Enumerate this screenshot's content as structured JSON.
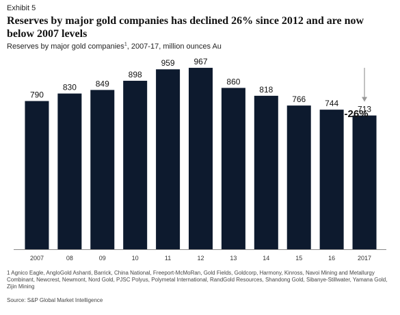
{
  "exhibit": "Exhibit 5",
  "title": "Reserves by major gold companies has declined 26% since 2012 and are now below 2007 levels",
  "subtitle": {
    "text": "Reserves by major gold companies",
    "superscript": "1",
    "rest": ", 2007-17, million ounces Au"
  },
  "chart_data": {
    "type": "bar",
    "categories": [
      "2007",
      "08",
      "09",
      "10",
      "11",
      "12",
      "13",
      "14",
      "15",
      "16",
      "2017"
    ],
    "values": [
      790,
      830,
      849,
      898,
      959,
      967,
      860,
      818,
      766,
      744,
      713
    ],
    "data_labels": [
      "790",
      "830",
      "849",
      "898",
      "959",
      "967",
      "860",
      "818",
      "766",
      "744",
      "713"
    ],
    "ylim": [
      0,
      1000
    ],
    "bar_color": "#0d1a2e",
    "annotation": {
      "text": "-26%",
      "from_category": "12",
      "to_category": "2017",
      "color": "#999999"
    },
    "grid": false
  },
  "footnote": "1 Agnico Eagle, AngloGold Ashanti, Barrick, China National, Freeport-McMoRan, Gold Fields, Goldcorp, Harmony, Kinross, Navoi Mining and Metallurgy Combinant, Newcrest, Newmont, Nord Gold, PJSC Polyus, Polymetal International, RandGold Resources, Shandong Gold, Sibanye-Stillwater, Yamana Gold, Zijin Mining",
  "source": "Source: S&P Global Market Intelligence"
}
